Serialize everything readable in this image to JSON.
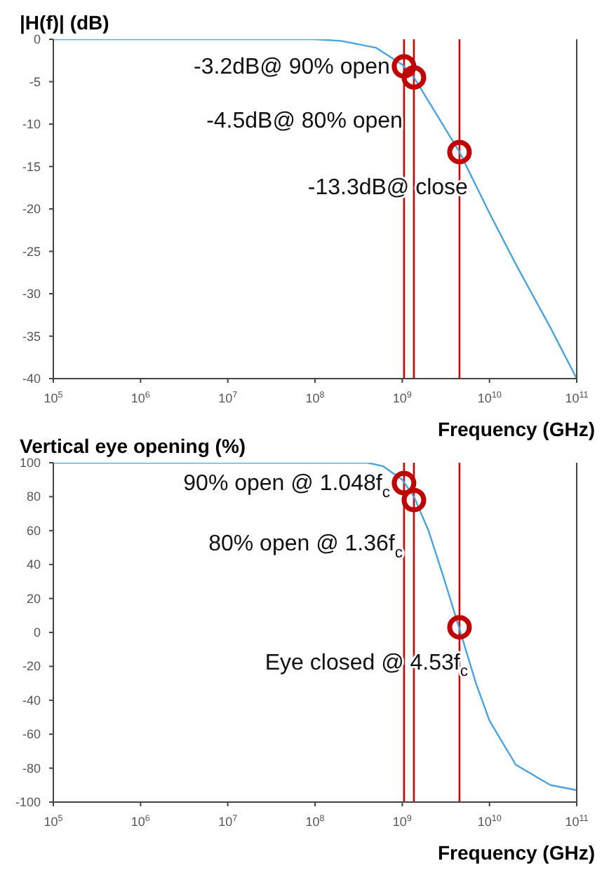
{
  "chart_data": [
    {
      "type": "line",
      "ylabel": "|H(f)| (dB)",
      "xlabel": "Frequency (GHz)",
      "log": "x",
      "xlim": [
        100000,
        100000000000
      ],
      "ylim": [
        -40,
        0
      ],
      "xticks": [
        {
          "value": 100000,
          "label": "10$^{5}$"
        },
        {
          "value": 1000000,
          "label": "10$^{6}$"
        },
        {
          "value": 10000000,
          "label": "10$^{7}$"
        },
        {
          "value": 100000000,
          "label": "10$^{8}$"
        },
        {
          "value": 1000000000,
          "label": "10$^{9}$"
        },
        {
          "value": 10000000000,
          "label": "10$^{10}$"
        },
        {
          "value": 100000000000,
          "label": "10$^{11}$"
        }
      ],
      "yticks": [
        -40,
        -35,
        -30,
        -25,
        -20,
        -15,
        -10,
        -5,
        0
      ],
      "grid": false,
      "series": [
        {
          "color": "#4aa3df",
          "marker": "none",
          "line_style": "solid",
          "x": [
            100000,
            1000000,
            10000000,
            100000000,
            200000000,
            500000000,
            1000000000,
            1360000000,
            2000000000,
            4530000000,
            10000000000,
            20000000000,
            50000000000,
            100000000000
          ],
          "values": [
            0,
            0,
            0,
            0,
            -0.2,
            -1,
            -3,
            -4.5,
            -7.3,
            -13.3,
            -20.5,
            -26.5,
            -34,
            -40
          ]
        },
        {
          "type": "scatter",
          "color": "#c00000",
          "marker": "circle",
          "x": [
            1048000000,
            1360000000,
            4530000000
          ],
          "values": [
            -3.2,
            -4.5,
            -13.3
          ]
        }
      ],
      "ref_lines": [
        {
          "axis": "x",
          "value": 1048000000,
          "color": "#d00000"
        },
        {
          "axis": "x",
          "value": 1360000000,
          "color": "#d00000"
        },
        {
          "axis": "x",
          "value": 4530000000,
          "color": "#d00000"
        }
      ],
      "annotations": [
        {
          "text": "-3.2dB@ 90% open",
          "x": 1048000000,
          "y": -3.2
        },
        {
          "text": "-4.5dB@ 80% open",
          "x": 1360000000,
          "y": -4.5
        },
        {
          "text": "-13.3dB@ close",
          "x": 4530000000,
          "y": -13.3
        }
      ]
    },
    {
      "type": "line",
      "ylabel": "Vertical eye opening (%)",
      "xlabel": "Frequency (GHz)",
      "log": "x",
      "xlim": [
        100000,
        100000000000
      ],
      "ylim": [
        -100,
        100
      ],
      "xticks": [
        {
          "value": 100000,
          "label": "10$^{5}$"
        },
        {
          "value": 1000000,
          "label": "10$^{6}$"
        },
        {
          "value": 10000000,
          "label": "10$^{7}$"
        },
        {
          "value": 100000000,
          "label": "10$^{8}$"
        },
        {
          "value": 1000000000,
          "label": "10$^{9}$"
        },
        {
          "value": 10000000000,
          "label": "10$^{10}$"
        },
        {
          "value": 100000000000,
          "label": "10$^{11}$"
        }
      ],
      "yticks": [
        -100,
        -80,
        -60,
        -40,
        -20,
        0,
        20,
        40,
        60,
        80,
        100
      ],
      "grid": false,
      "series": [
        {
          "color": "#4aa3df",
          "marker": "none",
          "line_style": "solid",
          "x": [
            100000,
            1000000,
            10000000,
            100000000,
            400000000,
            600000000,
            1000000000,
            1360000000,
            2000000000,
            3000000000,
            4530000000,
            7000000000,
            10000000000,
            20000000000,
            50000000000,
            100000000000
          ],
          "values": [
            100,
            100,
            100,
            100,
            100,
            98,
            90,
            80,
            60,
            32,
            2,
            -30,
            -52,
            -78,
            -90,
            -93
          ]
        },
        {
          "type": "scatter",
          "color": "#c00000",
          "marker": "circle",
          "x": [
            1048000000,
            1360000000,
            4530000000
          ],
          "values": [
            88,
            78,
            3
          ]
        }
      ],
      "ref_lines": [
        {
          "axis": "x",
          "value": 1048000000,
          "color": "#d00000"
        },
        {
          "axis": "x",
          "value": 1360000000,
          "color": "#d00000"
        },
        {
          "axis": "x",
          "value": 4530000000,
          "color": "#d00000"
        }
      ],
      "annotations": [
        {
          "text": "90% open @ 1.048f$_{c}$",
          "x": 1048000000,
          "y": 88
        },
        {
          "text": "80% open @ 1.36f$_{c}$",
          "x": 1360000000,
          "y": 78
        },
        {
          "text": "Eye closed @ 4.53f$_{c}$",
          "x": 4530000000,
          "y": 3
        }
      ]
    }
  ]
}
